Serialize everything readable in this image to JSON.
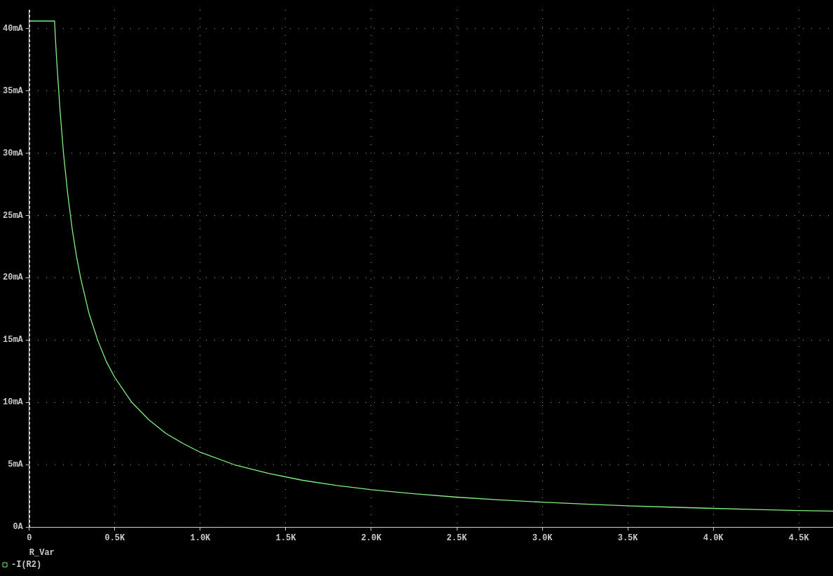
{
  "chart_data": {
    "type": "line",
    "xlabel": "R_Var",
    "legend": "bottom left",
    "grid": true,
    "marker": "none",
    "line_style": "solid",
    "xlim": [
      0,
      4700
    ],
    "xticks": [
      0,
      {
        "value": 500,
        "label": "0.5K"
      },
      {
        "value": 1000,
        "label": "1.0K"
      },
      {
        "value": 1500,
        "label": "1.5K"
      },
      {
        "value": 2000,
        "label": "2.0K"
      },
      {
        "value": 2500,
        "label": "2.5K"
      },
      {
        "value": 3000,
        "label": "3.0K"
      },
      {
        "value": 3500,
        "label": "3.5K"
      },
      {
        "value": 4000,
        "label": "4.0K"
      },
      {
        "value": 4500,
        "label": "4.5K"
      }
    ],
    "ylim": [
      0,
      41.5
    ],
    "yticks": [
      {
        "value": 0,
        "label": "0A"
      },
      {
        "value": 5,
        "label": "5mA"
      },
      {
        "value": 10,
        "label": "10mA"
      },
      {
        "value": 15,
        "label": "15mA"
      },
      {
        "value": 20,
        "label": "20mA"
      },
      {
        "value": 25,
        "label": "25mA"
      },
      {
        "value": 30,
        "label": "30mA"
      },
      {
        "value": 35,
        "label": "35mA"
      },
      {
        "value": 40,
        "label": "40mA"
      }
    ],
    "series": [
      {
        "name": "-I(R2)",
        "color": "#80f080",
        "x": [
          0,
          148,
          152,
          160,
          180,
          200,
          225,
          250,
          275,
          300,
          350,
          400,
          450,
          500,
          600,
          700,
          800,
          900,
          1000,
          1200,
          1400,
          1600,
          1800,
          2000,
          2250,
          2500,
          2750,
          3000,
          3250,
          3500,
          3750,
          4000,
          4250,
          4500,
          4700
        ],
        "values": [
          40.6,
          40.6,
          39.4,
          37.5,
          33.4,
          30.0,
          26.7,
          24.0,
          21.8,
          20.0,
          17.1,
          15.0,
          13.3,
          12.0,
          10.0,
          8.6,
          7.5,
          6.7,
          6.0,
          5.0,
          4.3,
          3.75,
          3.33,
          3.0,
          2.67,
          2.4,
          2.18,
          2.0,
          1.85,
          1.71,
          1.6,
          1.5,
          1.41,
          1.33,
          1.28
        ]
      }
    ]
  }
}
